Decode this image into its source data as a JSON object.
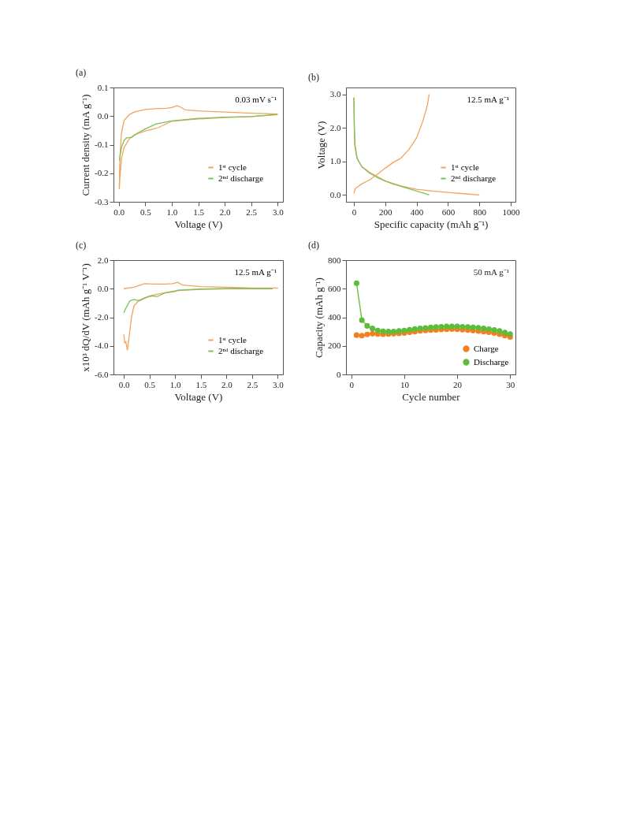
{
  "chart_data": [
    {
      "type": "line",
      "title": "(a)",
      "xlabel": "Voltage (V)",
      "ylabel": "Current density (mA g⁻¹)",
      "annotations": [
        "0.03 mV s⁻¹"
      ],
      "xlim": [
        -0.1,
        3.1
      ],
      "ylim": [
        -0.3,
        0.1
      ],
      "xticks": [
        {
          "value": 0,
          "label": "0.0"
        },
        0.5,
        {
          "value": 1,
          "label": "1.0"
        },
        1.5,
        {
          "value": 2,
          "label": "2.0"
        },
        2.5,
        {
          "value": 3,
          "label": "3.0"
        }
      ],
      "yticks": [
        -0.3,
        -0.2,
        -0.1,
        {
          "value": 0,
          "label": "0.0"
        },
        0.1
      ],
      "legend": "bottom right",
      "grid": false,
      "series": [
        {
          "name": "1ˢᵗ cycle",
          "color": "#f5a25d",
          "x": [
            3.0,
            2.5,
            2.0,
            1.5,
            1.0,
            0.75,
            0.6,
            0.5,
            0.3,
            0.2,
            0.1,
            0.05,
            0.02,
            0.01,
            0.02,
            0.05,
            0.1,
            0.2,
            0.3,
            0.5,
            0.7,
            0.9,
            1.0,
            1.1,
            1.15,
            1.25,
            1.5,
            2.0,
            2.5,
            3.0
          ],
          "values": [
            0.005,
            -0.002,
            -0.005,
            -0.01,
            -0.018,
            -0.04,
            -0.048,
            -0.052,
            -0.065,
            -0.08,
            -0.11,
            -0.15,
            -0.22,
            -0.255,
            -0.15,
            -0.06,
            -0.015,
            0.005,
            0.015,
            0.023,
            0.026,
            0.027,
            0.03,
            0.036,
            0.033,
            0.022,
            0.018,
            0.014,
            0.01,
            0.007
          ]
        },
        {
          "name": "2ⁿᵈ discharge",
          "color": "#7cc25a",
          "x": [
            3.0,
            2.5,
            2.0,
            1.5,
            1.0,
            0.7,
            0.5,
            0.35,
            0.25,
            0.15,
            0.1,
            0.05,
            0.01
          ],
          "values": [
            0.006,
            -0.002,
            -0.004,
            -0.008,
            -0.017,
            -0.028,
            -0.045,
            -0.06,
            -0.074,
            -0.076,
            -0.085,
            -0.11,
            -0.155
          ]
        }
      ]
    },
    {
      "type": "line",
      "title": "(b)",
      "xlabel": "Specific capacity (mAh g⁻¹)",
      "ylabel": "Voltage (V)",
      "annotations": [
        "12.5 mA g⁻¹"
      ],
      "xlim": [
        -50,
        1030
      ],
      "ylim": [
        -0.2,
        3.2
      ],
      "xticks": [
        0,
        200,
        400,
        600,
        800,
        1000
      ],
      "yticks": [
        {
          "value": 0,
          "label": "0.0"
        },
        {
          "value": 1,
          "label": "1.0"
        },
        {
          "value": 2,
          "label": "2.0"
        },
        {
          "value": 3,
          "label": "3.0"
        }
      ],
      "legend": "bottom right",
      "grid": false,
      "series": [
        {
          "name": "1ˢᵗ cycle",
          "color": "#f5a25d",
          "x": [
            0,
            5,
            20,
            50,
            100,
            150,
            200,
            300,
            400,
            500,
            600,
            700,
            800,
            null,
            0,
            10,
            50,
            100,
            150,
            200,
            250,
            300,
            350,
            400,
            440,
            470,
            480
          ],
          "values": [
            2.9,
            1.5,
            1.1,
            0.85,
            0.68,
            0.55,
            0.42,
            0.27,
            0.17,
            0.12,
            0.08,
            0.04,
            0.0,
            null,
            0.05,
            0.2,
            0.33,
            0.45,
            0.62,
            0.8,
            0.97,
            1.1,
            1.35,
            1.7,
            2.2,
            2.7,
            3.0
          ]
        },
        {
          "name": "2ⁿᵈ discharge",
          "color": "#7cc25a",
          "x": [
            0,
            3,
            8,
            20,
            50,
            100,
            150,
            200,
            250,
            300,
            350,
            400,
            450,
            480
          ],
          "values": [
            2.9,
            2.0,
            1.5,
            1.1,
            0.85,
            0.65,
            0.52,
            0.42,
            0.33,
            0.26,
            0.19,
            0.12,
            0.05,
            0.0
          ]
        }
      ]
    },
    {
      "type": "line",
      "title": "(c)",
      "xlabel": "Voltage (V)",
      "ylabel": "x10³ dQ/dV (mAh g⁻¹ V⁻¹)",
      "annotations": [
        "12.5 mA g⁻¹"
      ],
      "xlim": [
        -0.2,
        3.1
      ],
      "ylim": [
        -6,
        2
      ],
      "xticks": [
        {
          "value": 0,
          "label": "0.0"
        },
        0.5,
        {
          "value": 1,
          "label": "1.0"
        },
        1.5,
        {
          "value": 2,
          "label": "2.0"
        },
        2.5,
        {
          "value": 3,
          "label": "3.0"
        }
      ],
      "yticks": [
        {
          "value": -6,
          "label": "-6.0"
        },
        {
          "value": -4,
          "label": "-4.0"
        },
        {
          "value": -2,
          "label": "-2.0"
        },
        {
          "value": 0,
          "label": "0.0"
        },
        {
          "value": 2,
          "label": "2.0"
        }
      ],
      "legend": "bottom right",
      "grid": false,
      "series": [
        {
          "name": "1ˢᵗ cycle",
          "color": "#f5a25d",
          "x": [
            0.0,
            0.2,
            0.4,
            0.6,
            0.8,
            0.95,
            1.05,
            1.15,
            1.5,
            2.0,
            2.5,
            3.0,
            2.0,
            1.5,
            1.0,
            0.7,
            0.5,
            0.3,
            0.2,
            0.15,
            0.1,
            0.07,
            0.04,
            0.02,
            0.0
          ],
          "values": [
            0.0,
            0.1,
            0.35,
            0.32,
            0.32,
            0.35,
            0.45,
            0.25,
            0.15,
            0.1,
            0.05,
            0.05,
            0.0,
            -0.05,
            -0.15,
            -0.35,
            -0.5,
            -0.8,
            -1.2,
            -2.0,
            -3.5,
            -4.3,
            -3.7,
            -3.8,
            -3.2
          ]
        },
        {
          "name": "2ⁿᵈ discharge",
          "color": "#7cc25a",
          "x": [
            2.9,
            2.0,
            1.5,
            1.05,
            1.0,
            0.8,
            0.65,
            0.55,
            0.45,
            0.3,
            0.2,
            0.12,
            0.05,
            0.0
          ],
          "values": [
            0.0,
            0.0,
            -0.02,
            -0.1,
            -0.2,
            -0.3,
            -0.55,
            -0.5,
            -0.6,
            -0.85,
            -0.75,
            -0.85,
            -1.3,
            -1.7
          ]
        }
      ]
    },
    {
      "type": "line",
      "title": "(d)",
      "xlabel": "Cycle number",
      "ylabel": "Capacity (mAh g⁻¹)",
      "annotations": [
        "50 mA g⁻¹"
      ],
      "xlim": [
        -1,
        31
      ],
      "ylim": [
        0,
        800
      ],
      "xticks": [
        0,
        10,
        20,
        30
      ],
      "yticks": [
        0,
        200,
        400,
        600,
        800
      ],
      "legend": "bottom right",
      "grid": false,
      "marker": "circle",
      "x": [
        1,
        2,
        3,
        4,
        5,
        6,
        7,
        8,
        9,
        10,
        11,
        12,
        13,
        14,
        15,
        16,
        17,
        18,
        19,
        20,
        21,
        22,
        23,
        24,
        25,
        26,
        27,
        28,
        29,
        30
      ],
      "series": [
        {
          "name": "Charge",
          "color": "#f47f20",
          "values": [
            275,
            272,
            280,
            285,
            283,
            282,
            283,
            285,
            287,
            290,
            295,
            300,
            305,
            308,
            310,
            312,
            314,
            316,
            317,
            316,
            313,
            310,
            307,
            304,
            300,
            295,
            290,
            282,
            272,
            262
          ]
        },
        {
          "name": "Discharge",
          "color": "#5dbd3a",
          "values": [
            638,
            380,
            340,
            322,
            308,
            302,
            300,
            301,
            304,
            308,
            313,
            318,
            322,
            326,
            329,
            332,
            334,
            336,
            337,
            337,
            334,
            332,
            330,
            327,
            322,
            317,
            312,
            304,
            293,
            283
          ]
        }
      ]
    }
  ]
}
